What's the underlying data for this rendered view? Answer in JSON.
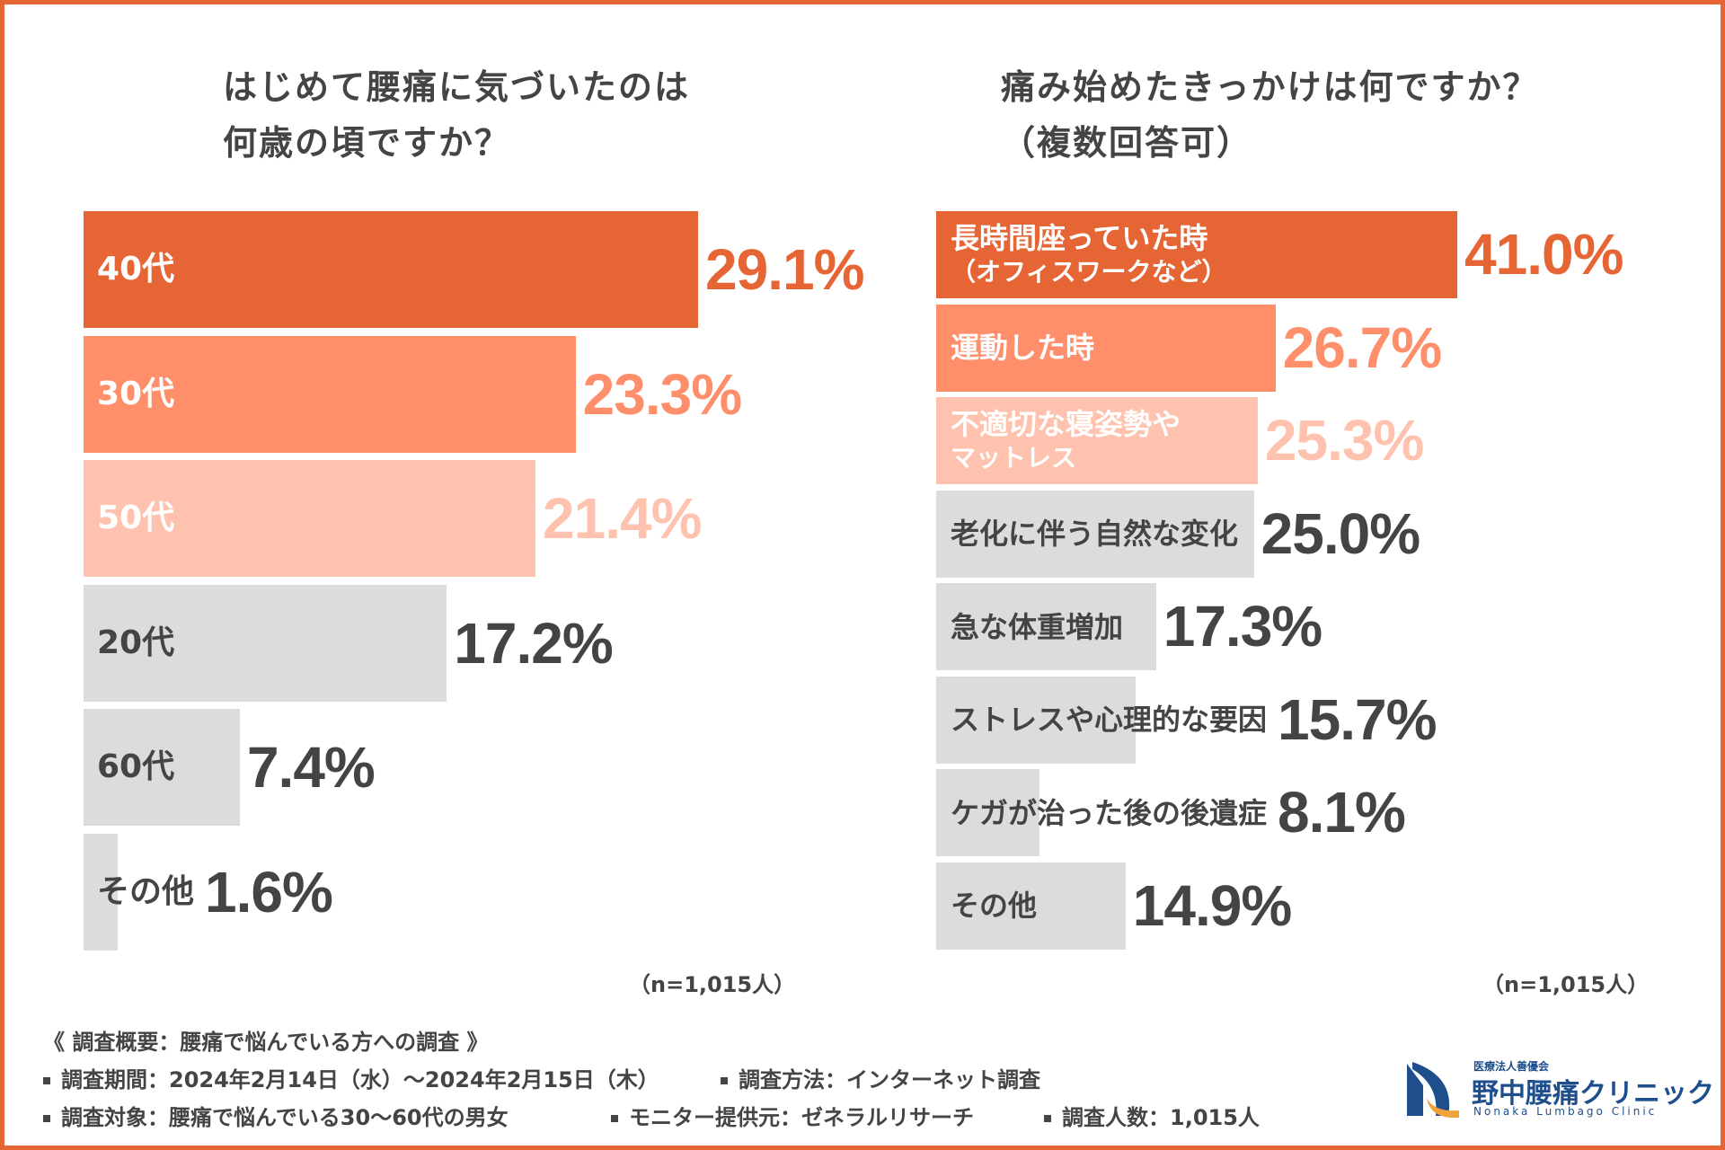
{
  "chart_data": [
    {
      "type": "bar",
      "orientation": "horizontal",
      "title_lines": [
        "はじめて腰痛に気づいたのは",
        "何歳の頃ですか？"
      ],
      "categories": [
        "40代",
        "30代",
        "50代",
        "20代",
        "60代",
        "その他"
      ],
      "values": [
        29.1,
        23.3,
        21.4,
        17.2,
        7.4,
        1.6
      ],
      "value_labels": [
        "29.1%",
        "23.3%",
        "21.4%",
        "17.2%",
        "7.4%",
        "1.6%"
      ],
      "unit": "%",
      "note": "（n=1,015人）"
    },
    {
      "type": "bar",
      "orientation": "horizontal",
      "title_lines": [
        "痛み始めたきっかけは何ですか？",
        "（複数回答可）"
      ],
      "categories": [
        [
          "長時間座っていた時",
          "（オフィスワークなど）"
        ],
        [
          "運動した時"
        ],
        [
          "不適切な寝姿勢や",
          "マットレス"
        ],
        [
          "老化に伴う自然な変化"
        ],
        [
          "急な体重増加"
        ],
        [
          "ストレスや心理的な要因"
        ],
        [
          "ケガが治った後の後遺症"
        ],
        [
          "その他"
        ]
      ],
      "values": [
        41.0,
        26.7,
        25.3,
        25.0,
        17.3,
        15.7,
        8.1,
        14.9
      ],
      "value_labels": [
        "41.0%",
        "26.7%",
        "25.3%",
        "25.0%",
        "17.3%",
        "15.7%",
        "8.1%",
        "14.9%"
      ],
      "unit": "%",
      "note": "（n=1,015人）"
    }
  ],
  "survey": {
    "overview": "《 調査概要：腰痛で悩んでいる方への調査 》",
    "period": "調査期間：2024年2月14日（水）〜2024年2月15日（木）",
    "method": "調査方法：インターネット調査",
    "target": "調査対象：腰痛で悩んでいる30〜60代の男女",
    "provider": "モニター提供元：ゼネラルリサーチ",
    "count": "調査人数：1,015人"
  },
  "logo": {
    "corp": "医療法人善優会",
    "name": "野中腰痛クリニック",
    "english": "Nonaka Lumbago Clinic"
  },
  "colors": {
    "rank1": "#E66535",
    "rank2": "#FE8F6A",
    "rank3": "#FFC2AE",
    "other": "#DCDCDC",
    "text": "#444444",
    "frame": "#E66535",
    "logo": "#1E4E8C"
  }
}
